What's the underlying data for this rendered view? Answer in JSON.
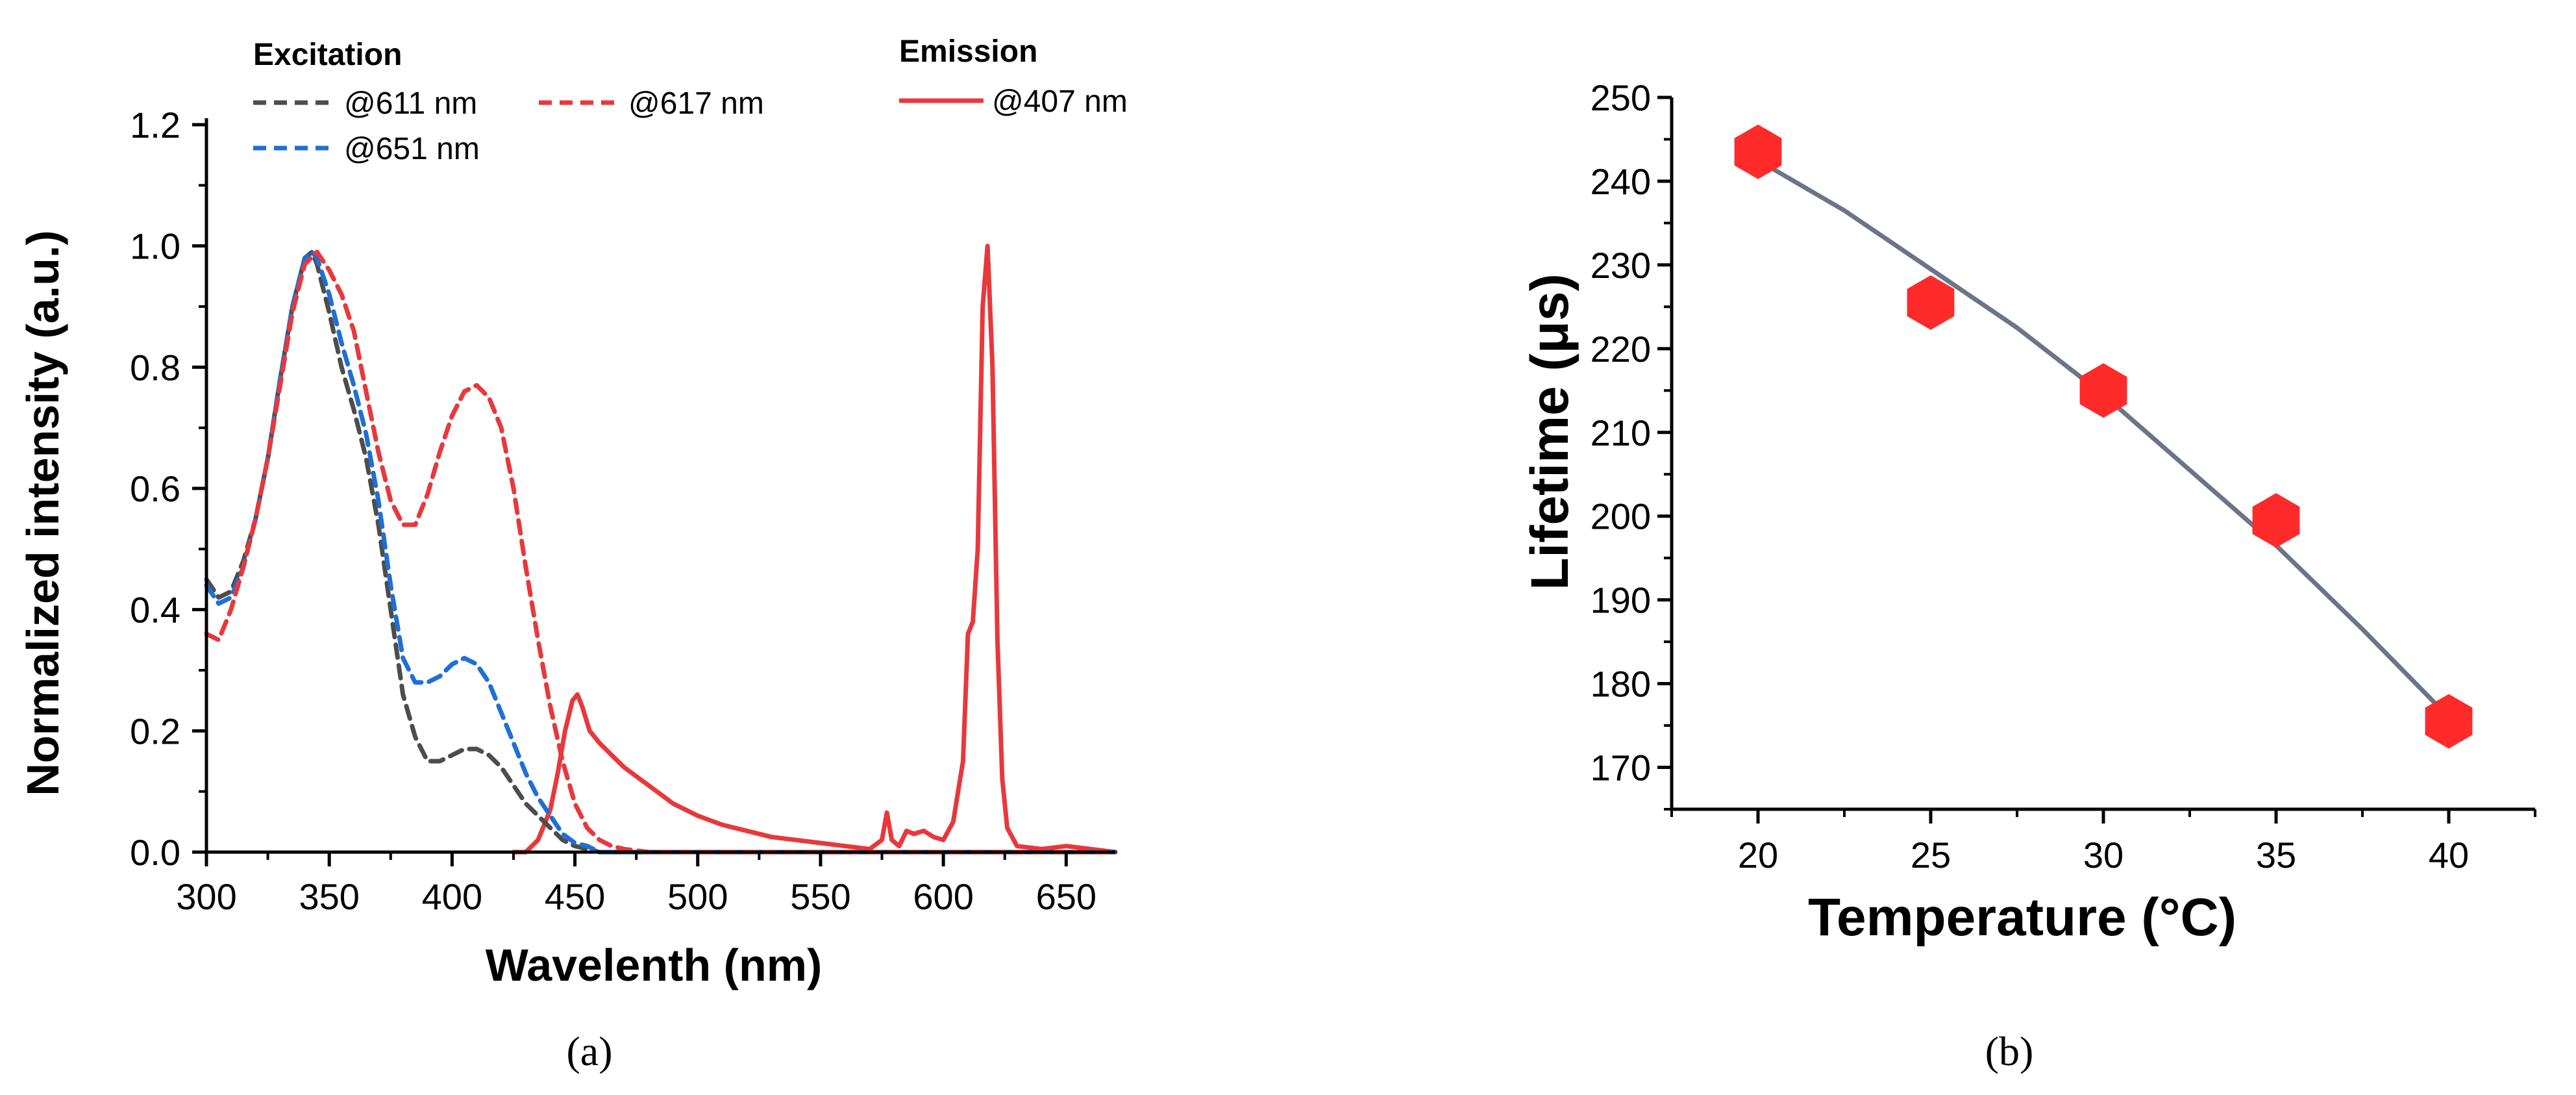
{
  "chart_data": [
    {
      "panel": "(a)",
      "type": "line",
      "xlabel": "Wavelenth (nm)",
      "ylabel": "Normalized intensity (a.u.)",
      "xlim": [
        300,
        670
      ],
      "ylim": [
        0,
        1.2
      ],
      "xticks": [
        300,
        350,
        400,
        450,
        500,
        550,
        600,
        650
      ],
      "yticks": [
        0.0,
        0.2,
        0.4,
        0.6,
        0.8,
        1.0,
        1.2
      ],
      "ytick_labels": [
        "0.0",
        "0.2",
        "0.4",
        "0.6",
        "0.8",
        "1.0",
        "1.2"
      ],
      "legend": {
        "excitation_title": "Excitation",
        "emission_title": "Emission",
        "placement": "top"
      },
      "series": [
        {
          "name": "@611 nm",
          "group": "Excitation",
          "color": "#4d4d4d",
          "style": "dashed",
          "x": [
            300,
            305,
            310,
            315,
            320,
            325,
            330,
            335,
            340,
            343,
            345,
            350,
            355,
            360,
            365,
            370,
            375,
            380,
            385,
            390,
            395,
            400,
            405,
            410,
            415,
            420,
            425,
            430,
            435,
            440,
            445,
            450,
            455,
            460,
            470,
            480,
            500,
            550,
            600,
            650,
            670
          ],
          "y": [
            0.45,
            0.42,
            0.43,
            0.48,
            0.55,
            0.65,
            0.78,
            0.9,
            0.98,
            0.99,
            0.97,
            0.89,
            0.8,
            0.73,
            0.65,
            0.54,
            0.4,
            0.26,
            0.19,
            0.15,
            0.15,
            0.16,
            0.17,
            0.17,
            0.16,
            0.14,
            0.11,
            0.08,
            0.06,
            0.04,
            0.02,
            0.01,
            0.005,
            0.0,
            0.0,
            0.0,
            0.0,
            0.0,
            0.0,
            0.0,
            0.0
          ]
        },
        {
          "name": "@651 nm",
          "group": "Excitation",
          "color": "#1f6fd6",
          "style": "dashed",
          "x": [
            300,
            305,
            310,
            315,
            320,
            325,
            330,
            335,
            340,
            343,
            345,
            350,
            355,
            360,
            365,
            370,
            375,
            380,
            385,
            390,
            395,
            400,
            405,
            410,
            415,
            420,
            425,
            430,
            435,
            440,
            445,
            450,
            455,
            460,
            470,
            480,
            500,
            550,
            600,
            650,
            670
          ],
          "y": [
            0.44,
            0.41,
            0.42,
            0.47,
            0.55,
            0.65,
            0.78,
            0.9,
            0.98,
            0.99,
            0.98,
            0.92,
            0.84,
            0.77,
            0.69,
            0.58,
            0.44,
            0.32,
            0.28,
            0.28,
            0.29,
            0.31,
            0.32,
            0.31,
            0.28,
            0.23,
            0.18,
            0.13,
            0.09,
            0.06,
            0.03,
            0.015,
            0.01,
            0.0,
            0.0,
            0.0,
            0.0,
            0.0,
            0.0,
            0.0,
            0.0
          ]
        },
        {
          "name": "@617 nm",
          "group": "Excitation",
          "color": "#e8383b",
          "style": "dashed",
          "x": [
            300,
            305,
            310,
            315,
            320,
            325,
            330,
            335,
            340,
            345,
            350,
            355,
            360,
            365,
            370,
            375,
            380,
            385,
            390,
            395,
            400,
            405,
            410,
            415,
            420,
            425,
            430,
            435,
            440,
            445,
            450,
            455,
            460,
            465,
            470,
            480,
            500,
            550,
            600,
            650,
            670
          ],
          "y": [
            0.36,
            0.35,
            0.4,
            0.47,
            0.55,
            0.65,
            0.77,
            0.89,
            0.97,
            0.99,
            0.96,
            0.92,
            0.86,
            0.76,
            0.66,
            0.58,
            0.54,
            0.54,
            0.59,
            0.66,
            0.72,
            0.76,
            0.77,
            0.75,
            0.7,
            0.6,
            0.47,
            0.35,
            0.24,
            0.15,
            0.08,
            0.04,
            0.02,
            0.01,
            0.005,
            0.0,
            0.0,
            0.0,
            0.0,
            0.0,
            0.0
          ]
        },
        {
          "name": "@407 nm",
          "group": "Emission",
          "color": "#e8383b",
          "style": "solid",
          "x": [
            425,
            430,
            435,
            440,
            443,
            446,
            449,
            451,
            453,
            456,
            460,
            465,
            470,
            480,
            490,
            500,
            510,
            520,
            530,
            540,
            550,
            560,
            570,
            575,
            577,
            579,
            582,
            585,
            588,
            592,
            596,
            600,
            604,
            608,
            610,
            612,
            614,
            616,
            618,
            620,
            622,
            624,
            626,
            630,
            640,
            650,
            660,
            670
          ],
          "y": [
            0.0,
            0.0,
            0.02,
            0.07,
            0.13,
            0.2,
            0.25,
            0.26,
            0.24,
            0.2,
            0.18,
            0.16,
            0.14,
            0.11,
            0.08,
            0.06,
            0.045,
            0.035,
            0.025,
            0.02,
            0.015,
            0.01,
            0.005,
            0.02,
            0.065,
            0.02,
            0.01,
            0.035,
            0.03,
            0.035,
            0.025,
            0.02,
            0.05,
            0.15,
            0.36,
            0.38,
            0.5,
            0.9,
            1.0,
            0.8,
            0.35,
            0.12,
            0.04,
            0.01,
            0.005,
            0.01,
            0.005,
            0.0
          ]
        }
      ]
    },
    {
      "panel": "(b)",
      "type": "scatter",
      "xlabel": "Temperature (°C)",
      "ylabel": "Lifetime (μs)",
      "xlim": [
        17.5,
        42.5
      ],
      "ylim": [
        165,
        250
      ],
      "xticks": [
        20,
        25,
        30,
        35,
        40
      ],
      "yticks": [
        170,
        180,
        190,
        200,
        210,
        220,
        230,
        240,
        250
      ],
      "series": [
        {
          "name": "",
          "kind": "points",
          "marker": "hexagon",
          "color": "#ff2a2a",
          "x": [
            20,
            25,
            30,
            35,
            40
          ],
          "y": [
            243.5,
            225.5,
            215,
            199.5,
            175.5
          ]
        },
        {
          "name": "",
          "kind": "fit",
          "color": "#6b7588",
          "x": [
            20,
            22.5,
            25,
            27.5,
            30,
            32.5,
            35,
            37.5,
            40
          ],
          "y": [
            242.5,
            236.5,
            229.5,
            222.5,
            214.5,
            205.5,
            196.5,
            186.5,
            176.0
          ]
        }
      ]
    }
  ]
}
